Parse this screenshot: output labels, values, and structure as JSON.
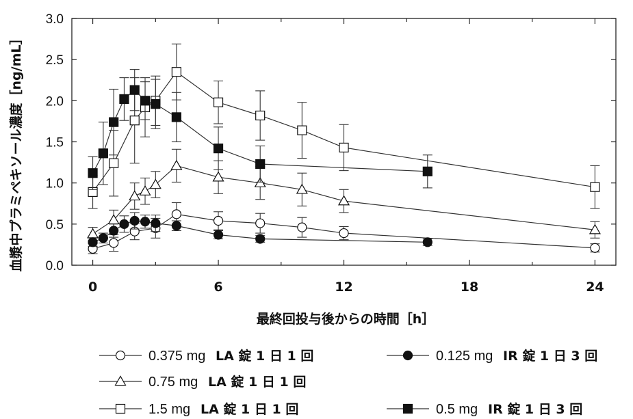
{
  "chart_data": {
    "type": "line",
    "xlabel": "最終回投与後からの時間［h］",
    "ylabel": "血漿中プラミペキソール濃度［ng/mL］",
    "xlim": [
      -1,
      25
    ],
    "ylim": [
      0,
      3.0
    ],
    "xticks": [
      "0",
      "6",
      "12",
      "18",
      "24"
    ],
    "yticks": [
      "0.0",
      "0.5",
      "1.0",
      "1.5",
      "2.0",
      "2.5",
      "3.0"
    ],
    "grid": false,
    "legend_position": "bottom",
    "series": [
      {
        "name": "0.375 mg",
        "name_form": "LA 錠 1 日 1 回",
        "marker": "circle-open",
        "x": [
          0,
          1,
          2,
          3,
          4,
          6,
          8,
          10,
          12,
          24
        ],
        "y": [
          0.2,
          0.27,
          0.41,
          0.45,
          0.62,
          0.54,
          0.51,
          0.46,
          0.39,
          0.21
        ],
        "err": [
          0.06,
          0.1,
          0.1,
          0.12,
          0.14,
          0.11,
          0.12,
          0.12,
          0.08,
          0.05
        ]
      },
      {
        "name": "0.75 mg",
        "name_form": "LA 錠 1 日 1 回",
        "marker": "triangle-open",
        "x": [
          0,
          1,
          2,
          2.5,
          3,
          4,
          6,
          8,
          10,
          12,
          24
        ],
        "y": [
          0.38,
          0.55,
          0.84,
          0.9,
          0.98,
          1.21,
          1.07,
          1.0,
          0.92,
          0.78,
          0.43
        ],
        "err": [
          0.08,
          0.12,
          0.16,
          0.16,
          0.16,
          0.2,
          0.2,
          0.2,
          0.2,
          0.14,
          0.1
        ]
      },
      {
        "name": "1.5 mg",
        "name_form": "LA 錠 1 日 1 回",
        "marker": "square-open",
        "x": [
          0,
          1,
          2,
          2.5,
          3,
          4,
          6,
          8,
          10,
          12,
          24
        ],
        "y": [
          0.89,
          1.24,
          1.76,
          1.92,
          2.0,
          2.35,
          1.98,
          1.82,
          1.64,
          1.43,
          0.95
        ],
        "err": [
          0.2,
          0.4,
          0.52,
          0.36,
          0.3,
          0.34,
          0.26,
          0.3,
          0.34,
          0.28,
          0.26
        ]
      },
      {
        "name": "0.125 mg",
        "name_form": "IR 錠 1 日 3 回",
        "marker": "circle-filled",
        "x": [
          0,
          0.5,
          1,
          1.5,
          2,
          2.5,
          3,
          4,
          6,
          8,
          16
        ],
        "y": [
          0.28,
          0.33,
          0.42,
          0.5,
          0.54,
          0.53,
          0.51,
          0.48,
          0.37,
          0.32,
          0.28
        ],
        "err": [
          0.05,
          0.06,
          0.08,
          0.1,
          0.1,
          0.08,
          0.1,
          0.06,
          0.05,
          0.04,
          0.04
        ]
      },
      {
        "name": "0.5 mg",
        "name_form": "IR 錠 1 日 3 回",
        "marker": "square-filled",
        "x": [
          0,
          0.5,
          1,
          1.5,
          2,
          2.5,
          3,
          4,
          6,
          8,
          16
        ],
        "y": [
          1.12,
          1.36,
          1.74,
          2.02,
          2.13,
          2.0,
          1.96,
          1.8,
          1.42,
          1.23,
          1.14
        ],
        "err": [
          0.2,
          0.38,
          0.4,
          0.26,
          0.25,
          0.23,
          0.3,
          0.3,
          0.26,
          0.22,
          0.2
        ]
      }
    ]
  }
}
